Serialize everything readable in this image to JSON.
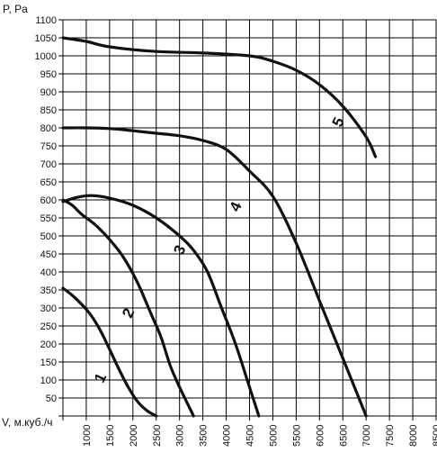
{
  "chart_data": {
    "type": "line",
    "ylabel": "P, Pa",
    "xlabel": "V, м.куб./ч",
    "xlim": [
      500,
      8500
    ],
    "ylim": [
      0,
      1100
    ],
    "x_ticks": [
      1000,
      1500,
      2000,
      2500,
      3000,
      3500,
      4000,
      4500,
      5000,
      5500,
      6000,
      6500,
      7000,
      7500,
      8000,
      8500
    ],
    "y_ticks": [
      50,
      100,
      150,
      200,
      250,
      300,
      350,
      400,
      450,
      500,
      550,
      600,
      650,
      700,
      750,
      800,
      850,
      900,
      950,
      1000,
      1050,
      1100
    ],
    "grid": true,
    "series": [
      {
        "name": "1",
        "x": [
          500,
          700,
          900,
          1100,
          1300,
          1500,
          1700,
          1900,
          2100,
          2300,
          2500
        ],
        "y": [
          355,
          335,
          310,
          280,
          238,
          185,
          130,
          80,
          40,
          15,
          0
        ]
      },
      {
        "name": "2",
        "x": [
          500,
          700,
          900,
          1200,
          1500,
          1800,
          2100,
          2400,
          2600,
          2800,
          3000,
          3300
        ],
        "y": [
          600,
          585,
          560,
          530,
          490,
          440,
          370,
          280,
          220,
          140,
          80,
          0
        ]
      },
      {
        "name": "3",
        "x": [
          500,
          800,
          1100,
          1500,
          2000,
          2500,
          3000,
          3300,
          3600,
          3900,
          4200,
          4500,
          4700
        ],
        "y": [
          595,
          607,
          612,
          605,
          585,
          550,
          500,
          460,
          400,
          300,
          200,
          80,
          0
        ]
      },
      {
        "name": "4",
        "x": [
          500,
          1000,
          1500,
          2000,
          2500,
          3000,
          3500,
          4000,
          4500,
          5000,
          5500,
          6000,
          6500,
          7000
        ],
        "y": [
          800,
          800,
          798,
          792,
          785,
          778,
          765,
          740,
          680,
          610,
          480,
          320,
          160,
          0
        ]
      },
      {
        "name": "5",
        "x": [
          500,
          1000,
          1500,
          2500,
          3500,
          4500,
          5000,
          5500,
          6000,
          6500,
          7000,
          7200
        ],
        "y": [
          1050,
          1040,
          1025,
          1012,
          1008,
          1000,
          985,
          960,
          920,
          860,
          775,
          720
        ]
      }
    ],
    "label_positions": [
      {
        "name": "1",
        "x": 1400,
        "y": 100
      },
      {
        "name": "2",
        "x": 2000,
        "y": 280
      },
      {
        "name": "3",
        "x": 3100,
        "y": 455
      },
      {
        "name": "4",
        "x": 4300,
        "y": 575
      },
      {
        "name": "5",
        "x": 6500,
        "y": 810
      }
    ]
  }
}
